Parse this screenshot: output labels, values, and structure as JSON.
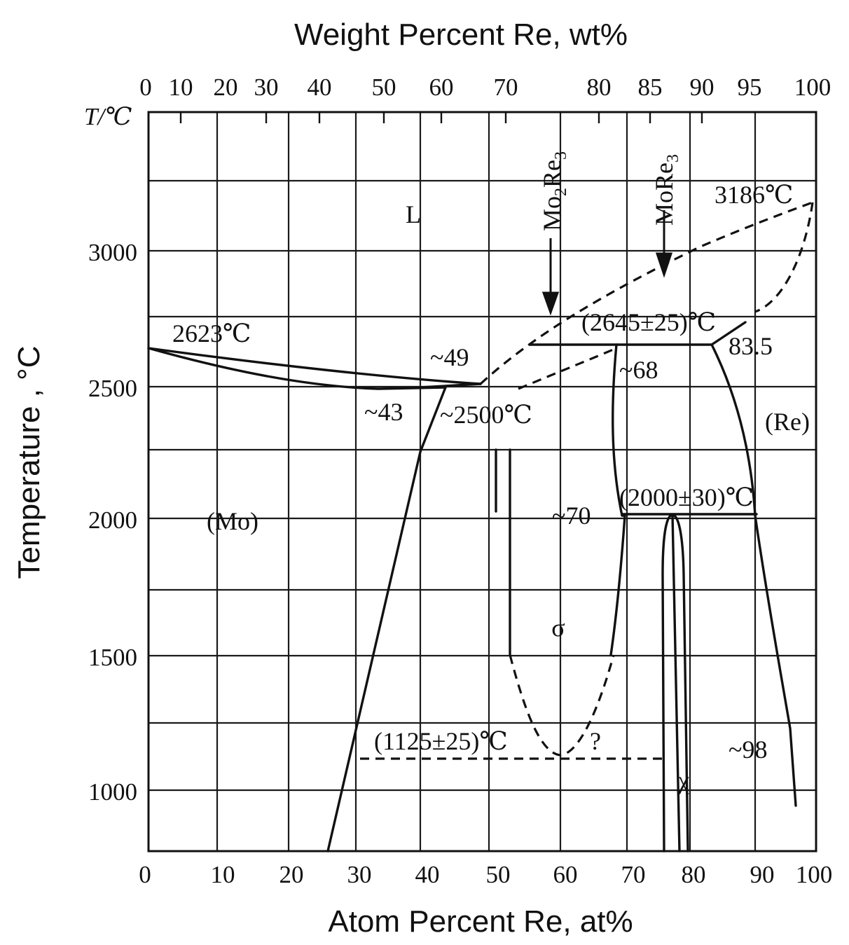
{
  "title_top": "Weight Percent Re, wt%",
  "x_label": "Atom Percent  Re, at%",
  "y_label": "Temperature , °C",
  "y_unit_label": "T/℃",
  "top_axis_ticks": [
    "0",
    "10",
    "20",
    "30",
    "40",
    "50",
    "60",
    "70",
    "80",
    "85",
    "90",
    "95",
    "100"
  ],
  "bottom_axis_ticks": [
    "0",
    "10",
    "20",
    "30",
    "40",
    "50",
    "60",
    "70",
    "80",
    "90",
    "100"
  ],
  "left_axis_ticks": [
    "3000",
    "2500",
    "2000",
    "1500",
    "1000"
  ],
  "phase_labels": {
    "liquid": "L",
    "mo": "(Mo)",
    "re": "(Re)",
    "sigma": "σ",
    "chi": "χ"
  },
  "compound_labels": {
    "mo2re3_base": "Mo",
    "mo2re3_sub1": "2",
    "mo2re3_re": "Re",
    "mo2re3_sub2": "3",
    "more3_base": "MoRe",
    "more3_sub": "3"
  },
  "annotations": {
    "mo_melt": "2623℃",
    "re_melt": "3186℃",
    "peritectic": "(2645±25)℃",
    "comp_83_5": "83.5",
    "comp_68": "~68",
    "comp_49": "~49",
    "comp_43": "~43",
    "eutectic": "~2500℃",
    "chi_temp": "(2000±30)℃",
    "comp_70": "~70",
    "eutectoid": "(1125±25)℃",
    "question": "?",
    "comp_98": "~98"
  }
}
